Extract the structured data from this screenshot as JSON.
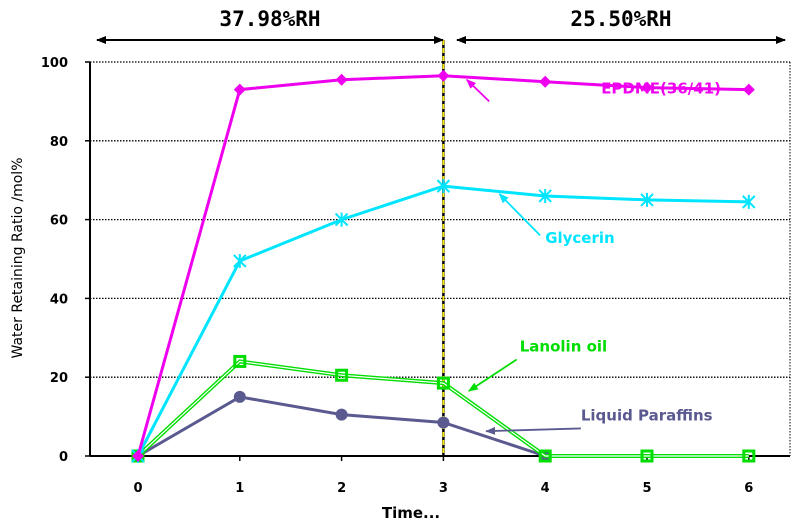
{
  "chart_data": {
    "type": "line",
    "title": "",
    "xlabel": "Time...",
    "ylabel": "Water Retaining Ratio /mol%",
    "x": [
      0,
      1,
      2,
      3,
      4,
      5,
      6
    ],
    "x_tick_labels": [
      "0",
      "1",
      "2",
      "3",
      "4",
      "5",
      "6"
    ],
    "ylim": [
      0,
      100
    ],
    "y_tick_labels": [
      "0",
      "20",
      "40",
      "60",
      "80",
      "100"
    ],
    "y_ticks": [
      0,
      20,
      40,
      60,
      80,
      100
    ],
    "grid": "horizontal-dotted",
    "divider_x": 3,
    "conditions": [
      {
        "label": "37.98%RH",
        "from": 0,
        "to": 3
      },
      {
        "label": "25.50%RH",
        "from": 3,
        "to": 6
      }
    ],
    "series": [
      {
        "name": "EPDME(36/41)",
        "color": "#ee00ee",
        "marker": "diamond",
        "values": [
          0,
          93,
          95.5,
          96.5,
          95,
          93.5,
          93
        ],
        "label_at": [
          4.55,
          92
        ]
      },
      {
        "name": "Glycerin",
        "color": "#00e5ff",
        "marker": "star",
        "values": [
          0,
          49.5,
          60,
          68.5,
          66,
          65,
          64.5
        ],
        "label_at": [
          4.0,
          54
        ]
      },
      {
        "name": "Lanolin oil",
        "color": "#00dd00",
        "marker": "square",
        "values": [
          0,
          24,
          20.5,
          18.5,
          0,
          0,
          0
        ],
        "label_at": [
          3.75,
          26.5
        ]
      },
      {
        "name": "Liquid Paraffins",
        "color": "#5a5a90",
        "marker": "circle",
        "values": [
          0,
          15,
          10.5,
          8.5,
          0,
          null,
          null
        ],
        "label_at": [
          4.35,
          9
        ]
      }
    ]
  }
}
